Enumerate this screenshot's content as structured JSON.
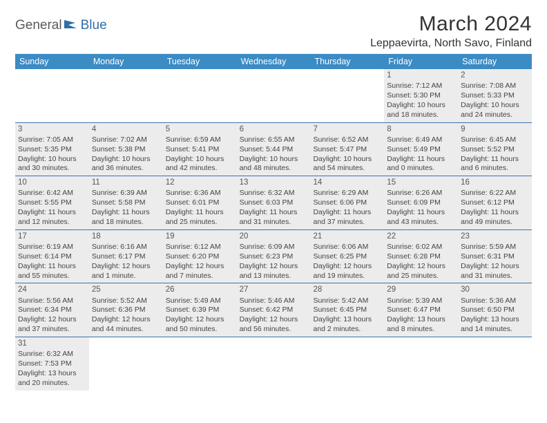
{
  "logo": {
    "general": "General",
    "blue": "Blue"
  },
  "title": "March 2024",
  "location": "Leppaevirta, North Savo, Finland",
  "colors": {
    "header_bg": "#3b8bc4",
    "header_text": "#ffffff",
    "row_divider": "#3b72a8",
    "shaded_bg": "#ececec",
    "body_text": "#444444",
    "logo_gray": "#5a5a5a",
    "logo_blue": "#2f6fa7"
  },
  "weekdays": [
    "Sunday",
    "Monday",
    "Tuesday",
    "Wednesday",
    "Thursday",
    "Friday",
    "Saturday"
  ],
  "weeks": [
    [
      {
        "blank": true
      },
      {
        "blank": true
      },
      {
        "blank": true
      },
      {
        "blank": true
      },
      {
        "blank": true
      },
      {
        "n": "1",
        "sr": "Sunrise: 7:12 AM",
        "ss": "Sunset: 5:30 PM",
        "d1": "Daylight: 10 hours",
        "d2": "and 18 minutes.",
        "shaded": true
      },
      {
        "n": "2",
        "sr": "Sunrise: 7:08 AM",
        "ss": "Sunset: 5:33 PM",
        "d1": "Daylight: 10 hours",
        "d2": "and 24 minutes.",
        "shaded": true
      }
    ],
    [
      {
        "n": "3",
        "sr": "Sunrise: 7:05 AM",
        "ss": "Sunset: 5:35 PM",
        "d1": "Daylight: 10 hours",
        "d2": "and 30 minutes.",
        "shaded": true
      },
      {
        "n": "4",
        "sr": "Sunrise: 7:02 AM",
        "ss": "Sunset: 5:38 PM",
        "d1": "Daylight: 10 hours",
        "d2": "and 36 minutes.",
        "shaded": true
      },
      {
        "n": "5",
        "sr": "Sunrise: 6:59 AM",
        "ss": "Sunset: 5:41 PM",
        "d1": "Daylight: 10 hours",
        "d2": "and 42 minutes.",
        "shaded": true
      },
      {
        "n": "6",
        "sr": "Sunrise: 6:55 AM",
        "ss": "Sunset: 5:44 PM",
        "d1": "Daylight: 10 hours",
        "d2": "and 48 minutes.",
        "shaded": true
      },
      {
        "n": "7",
        "sr": "Sunrise: 6:52 AM",
        "ss": "Sunset: 5:47 PM",
        "d1": "Daylight: 10 hours",
        "d2": "and 54 minutes.",
        "shaded": true
      },
      {
        "n": "8",
        "sr": "Sunrise: 6:49 AM",
        "ss": "Sunset: 5:49 PM",
        "d1": "Daylight: 11 hours",
        "d2": "and 0 minutes.",
        "shaded": true
      },
      {
        "n": "9",
        "sr": "Sunrise: 6:45 AM",
        "ss": "Sunset: 5:52 PM",
        "d1": "Daylight: 11 hours",
        "d2": "and 6 minutes.",
        "shaded": true
      }
    ],
    [
      {
        "n": "10",
        "sr": "Sunrise: 6:42 AM",
        "ss": "Sunset: 5:55 PM",
        "d1": "Daylight: 11 hours",
        "d2": "and 12 minutes.",
        "shaded": true
      },
      {
        "n": "11",
        "sr": "Sunrise: 6:39 AM",
        "ss": "Sunset: 5:58 PM",
        "d1": "Daylight: 11 hours",
        "d2": "and 18 minutes.",
        "shaded": true
      },
      {
        "n": "12",
        "sr": "Sunrise: 6:36 AM",
        "ss": "Sunset: 6:01 PM",
        "d1": "Daylight: 11 hours",
        "d2": "and 25 minutes.",
        "shaded": true
      },
      {
        "n": "13",
        "sr": "Sunrise: 6:32 AM",
        "ss": "Sunset: 6:03 PM",
        "d1": "Daylight: 11 hours",
        "d2": "and 31 minutes.",
        "shaded": true
      },
      {
        "n": "14",
        "sr": "Sunrise: 6:29 AM",
        "ss": "Sunset: 6:06 PM",
        "d1": "Daylight: 11 hours",
        "d2": "and 37 minutes.",
        "shaded": true
      },
      {
        "n": "15",
        "sr": "Sunrise: 6:26 AM",
        "ss": "Sunset: 6:09 PM",
        "d1": "Daylight: 11 hours",
        "d2": "and 43 minutes.",
        "shaded": true
      },
      {
        "n": "16",
        "sr": "Sunrise: 6:22 AM",
        "ss": "Sunset: 6:12 PM",
        "d1": "Daylight: 11 hours",
        "d2": "and 49 minutes.",
        "shaded": true
      }
    ],
    [
      {
        "n": "17",
        "sr": "Sunrise: 6:19 AM",
        "ss": "Sunset: 6:14 PM",
        "d1": "Daylight: 11 hours",
        "d2": "and 55 minutes.",
        "shaded": true
      },
      {
        "n": "18",
        "sr": "Sunrise: 6:16 AM",
        "ss": "Sunset: 6:17 PM",
        "d1": "Daylight: 12 hours",
        "d2": "and 1 minute.",
        "shaded": true
      },
      {
        "n": "19",
        "sr": "Sunrise: 6:12 AM",
        "ss": "Sunset: 6:20 PM",
        "d1": "Daylight: 12 hours",
        "d2": "and 7 minutes.",
        "shaded": true
      },
      {
        "n": "20",
        "sr": "Sunrise: 6:09 AM",
        "ss": "Sunset: 6:23 PM",
        "d1": "Daylight: 12 hours",
        "d2": "and 13 minutes.",
        "shaded": true
      },
      {
        "n": "21",
        "sr": "Sunrise: 6:06 AM",
        "ss": "Sunset: 6:25 PM",
        "d1": "Daylight: 12 hours",
        "d2": "and 19 minutes.",
        "shaded": true
      },
      {
        "n": "22",
        "sr": "Sunrise: 6:02 AM",
        "ss": "Sunset: 6:28 PM",
        "d1": "Daylight: 12 hours",
        "d2": "and 25 minutes.",
        "shaded": true
      },
      {
        "n": "23",
        "sr": "Sunrise: 5:59 AM",
        "ss": "Sunset: 6:31 PM",
        "d1": "Daylight: 12 hours",
        "d2": "and 31 minutes.",
        "shaded": true
      }
    ],
    [
      {
        "n": "24",
        "sr": "Sunrise: 5:56 AM",
        "ss": "Sunset: 6:34 PM",
        "d1": "Daylight: 12 hours",
        "d2": "and 37 minutes.",
        "shaded": true
      },
      {
        "n": "25",
        "sr": "Sunrise: 5:52 AM",
        "ss": "Sunset: 6:36 PM",
        "d1": "Daylight: 12 hours",
        "d2": "and 44 minutes.",
        "shaded": true
      },
      {
        "n": "26",
        "sr": "Sunrise: 5:49 AM",
        "ss": "Sunset: 6:39 PM",
        "d1": "Daylight: 12 hours",
        "d2": "and 50 minutes.",
        "shaded": true
      },
      {
        "n": "27",
        "sr": "Sunrise: 5:46 AM",
        "ss": "Sunset: 6:42 PM",
        "d1": "Daylight: 12 hours",
        "d2": "and 56 minutes.",
        "shaded": true
      },
      {
        "n": "28",
        "sr": "Sunrise: 5:42 AM",
        "ss": "Sunset: 6:45 PM",
        "d1": "Daylight: 13 hours",
        "d2": "and 2 minutes.",
        "shaded": true
      },
      {
        "n": "29",
        "sr": "Sunrise: 5:39 AM",
        "ss": "Sunset: 6:47 PM",
        "d1": "Daylight: 13 hours",
        "d2": "and 8 minutes.",
        "shaded": true
      },
      {
        "n": "30",
        "sr": "Sunrise: 5:36 AM",
        "ss": "Sunset: 6:50 PM",
        "d1": "Daylight: 13 hours",
        "d2": "and 14 minutes.",
        "shaded": true
      }
    ],
    [
      {
        "n": "31",
        "sr": "Sunrise: 6:32 AM",
        "ss": "Sunset: 7:53 PM",
        "d1": "Daylight: 13 hours",
        "d2": "and 20 minutes.",
        "shaded": true
      },
      {
        "blank": true
      },
      {
        "blank": true
      },
      {
        "blank": true
      },
      {
        "blank": true
      },
      {
        "blank": true
      },
      {
        "blank": true
      }
    ]
  ]
}
